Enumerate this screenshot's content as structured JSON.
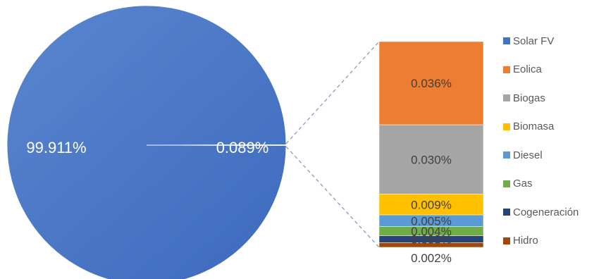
{
  "chart_data": {
    "type": "pie-of-bar",
    "title": "",
    "pie": {
      "slices": [
        {
          "label": "99.911%",
          "value": 99.911,
          "color": "#4472C4"
        },
        {
          "label": "0.089%",
          "value": 0.089,
          "color": "#4472C4"
        }
      ]
    },
    "bar": {
      "segments": [
        {
          "name": "Eolica",
          "value": 0.036,
          "label": "0.036%",
          "color": "#ED7D31"
        },
        {
          "name": "Biogas",
          "value": 0.03,
          "label": "0.030%",
          "color": "#A5A5A5"
        },
        {
          "name": "Biomasa",
          "value": 0.009,
          "label": "0.009%",
          "color": "#FFC000"
        },
        {
          "name": "Diesel",
          "value": 0.005,
          "label": "0.005%",
          "color": "#5B9BD5"
        },
        {
          "name": "Gas",
          "value": 0.004,
          "label": "0.004%",
          "color": "#70AD47"
        },
        {
          "name": "Cogeneración",
          "value": 0.003,
          "label": "0.003%",
          "color": "#264478"
        },
        {
          "name": "Hidro",
          "value": 0.002,
          "label": "0.002%",
          "color": "#9E480E"
        }
      ]
    },
    "legend": {
      "placement": "right",
      "items": [
        {
          "label": "Solar FV",
          "color": "#4472C4"
        },
        {
          "label": "Eolica",
          "color": "#ED7D31"
        },
        {
          "label": "Biogas",
          "color": "#A5A5A5"
        },
        {
          "label": "Biomasa",
          "color": "#FFC000"
        },
        {
          "label": "Diesel",
          "color": "#5B9BD5"
        },
        {
          "label": "Gas",
          "color": "#70AD47"
        },
        {
          "label": "Cogeneración",
          "color": "#264478"
        },
        {
          "label": "Hidro",
          "color": "#9E480E"
        }
      ]
    }
  }
}
